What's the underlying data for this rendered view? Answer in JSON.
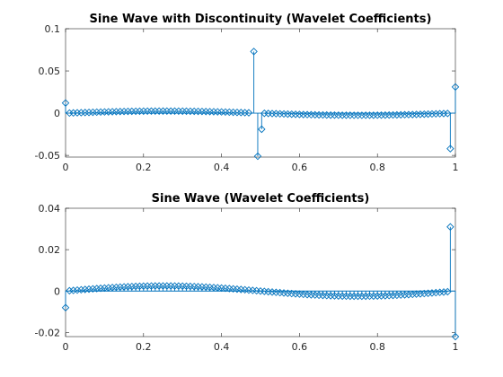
{
  "colors": {
    "series": "#0072bd",
    "axis": "#262626"
  },
  "chart_data": [
    {
      "type": "stem",
      "title": "Sine Wave with Discontinuity (Wavelet Coefficients)",
      "xlabel": "",
      "ylabel": "",
      "xlim": [
        0,
        1
      ],
      "ylim": [
        -0.052,
        0.1
      ],
      "xticks": [
        0,
        0.2,
        0.4,
        0.6,
        0.8,
        1
      ],
      "xtick_labels": [
        "0",
        "0.2",
        "0.4",
        "0.6",
        "0.8",
        "1"
      ],
      "yticks": [
        -0.05,
        0,
        0.05,
        0.1
      ],
      "ytick_labels": [
        "-0.05",
        "0",
        "0.05",
        "0.1"
      ],
      "marker": "diamond",
      "grid": false,
      "spikes": [
        {
          "x": 0.0,
          "y": 0.012
        },
        {
          "x": 0.483,
          "y": 0.073
        },
        {
          "x": 0.493,
          "y": -0.051
        },
        {
          "x": 0.503,
          "y": -0.019
        },
        {
          "x": 0.987,
          "y": -0.042
        },
        {
          "x": 1.0,
          "y": 0.031
        }
      ],
      "smooth": {
        "x_start": 0.01,
        "x_end": 0.98,
        "step": 0.01,
        "amplitude": 0.0025,
        "skip_from": 0.475,
        "skip_to": 0.51
      }
    },
    {
      "type": "stem",
      "title": "Sine Wave (Wavelet Coefficients)",
      "xlabel": "",
      "ylabel": "",
      "xlim": [
        0,
        1
      ],
      "ylim": [
        -0.022,
        0.04
      ],
      "xticks": [
        0,
        0.2,
        0.4,
        0.6,
        0.8,
        1
      ],
      "xtick_labels": [
        "0",
        "0.2",
        "0.4",
        "0.6",
        "0.8",
        "1"
      ],
      "yticks": [
        -0.02,
        0,
        0.02,
        0.04
      ],
      "ytick_labels": [
        "-0.02",
        "0",
        "0.02",
        "0.04"
      ],
      "marker": "diamond",
      "grid": false,
      "spikes": [
        {
          "x": 0.0,
          "y": -0.008
        },
        {
          "x": 0.987,
          "y": 0.031
        },
        {
          "x": 1.0,
          "y": -0.022
        }
      ],
      "smooth": {
        "x_start": 0.01,
        "x_end": 0.98,
        "step": 0.01,
        "amplitude": 0.0025,
        "skip_from": 2,
        "skip_to": 2
      }
    }
  ]
}
